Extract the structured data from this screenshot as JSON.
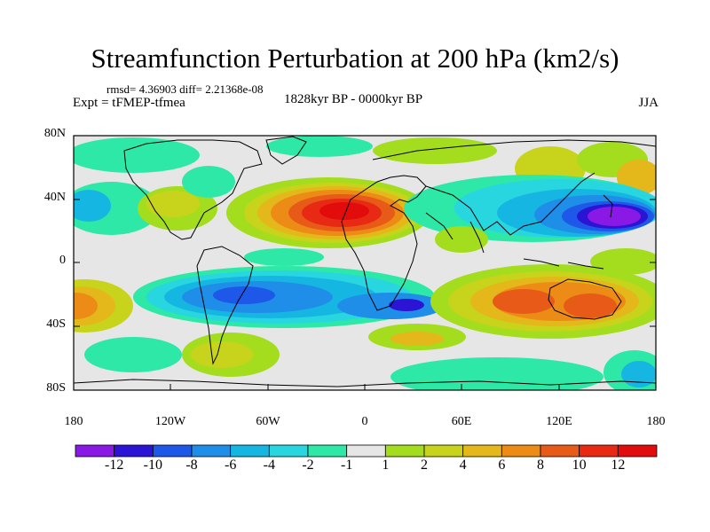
{
  "title": "Streamfunction Perturbation at 200 hPa (km2/s)",
  "stats": "rmsd= 4.36903 diff= 2.21368e-08",
  "experiment": "Expt = tFMEP-tfmea",
  "period": "1828kyr BP - 0000kyr BP",
  "season": "JJA",
  "y_ticks": [
    "80N",
    "40N",
    "0",
    "40S",
    "80S"
  ],
  "x_ticks": [
    "180",
    "120W",
    "60W",
    "0",
    "60E",
    "120E",
    "180"
  ],
  "colorbar": {
    "labels": [
      "-12",
      "-10",
      "-8",
      "-6",
      "-4",
      "-2",
      "-1",
      "1",
      "2",
      "4",
      "6",
      "8",
      "10",
      "12"
    ],
    "colors": [
      "#8a19e6",
      "#2b14d4",
      "#1e58e8",
      "#1f8ee8",
      "#16b6e3",
      "#28d6df",
      "#2ee8a8",
      "#e6e6e6",
      "#a4dc1e",
      "#c8d41c",
      "#e4b81a",
      "#ec8c17",
      "#e85a17",
      "#e82a14",
      "#e20c0c"
    ]
  }
}
